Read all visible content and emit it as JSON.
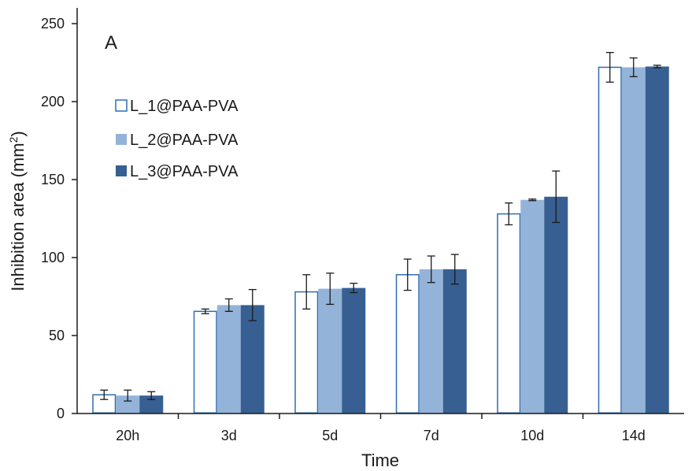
{
  "chart_data": {
    "type": "bar",
    "panel_label": "A",
    "title": "",
    "xlabel": "Time",
    "ylabel": "Inhibition area (mm²)",
    "ylim": [
      0,
      250
    ],
    "yticks": [
      0,
      50,
      100,
      150,
      200,
      250
    ],
    "categories": [
      "20h",
      "3d",
      "5d",
      "7d",
      "10d",
      "14d"
    ],
    "legend_position": "top-left",
    "grid": false,
    "series": [
      {
        "name": "L_1@PAA-PVA",
        "fill": "#ffffff",
        "stroke": "#2e6db4",
        "values": [
          12,
          65.5,
          78,
          89,
          128,
          222
        ],
        "errors": [
          3,
          1.5,
          11,
          10,
          7,
          9.5
        ]
      },
      {
        "name": "L_2@PAA-PVA",
        "fill": "#94b3d9",
        "stroke": "#94b3d9",
        "values": [
          11.5,
          69.5,
          80,
          92.5,
          137,
          222
        ],
        "errors": [
          3.5,
          4,
          10,
          8.5,
          0.5,
          6
        ]
      },
      {
        "name": "L_3@PAA-PVA",
        "fill": "#375f92",
        "stroke": "#375f92",
        "values": [
          11.5,
          69.5,
          80.5,
          92.5,
          139,
          222.5
        ],
        "errors": [
          2.5,
          10,
          3,
          9.5,
          16.5,
          0.8
        ]
      }
    ]
  }
}
